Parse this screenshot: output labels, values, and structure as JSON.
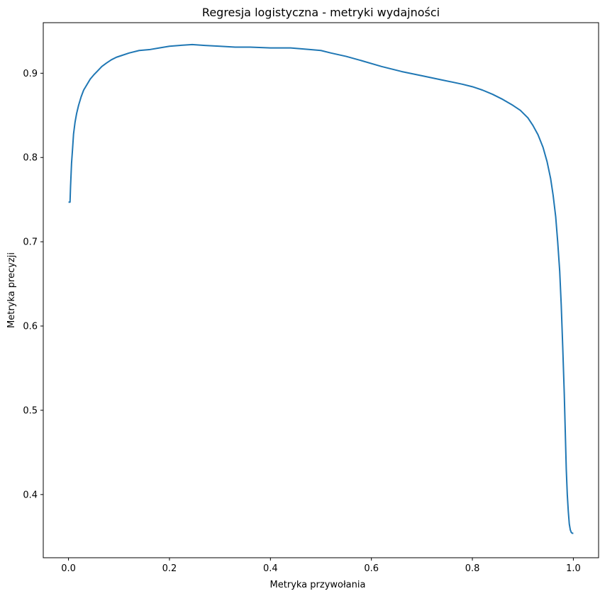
{
  "chart_data": {
    "type": "line",
    "title": "Regresja logistyczna - metryki wydajności",
    "xlabel": "Metryka przywołania",
    "ylabel": "Metryka precyzji",
    "xlim": [
      -0.05,
      1.05
    ],
    "ylim": [
      0.325,
      0.96
    ],
    "xticks": [
      {
        "value": 0.0,
        "label": "0.0"
      },
      {
        "value": 0.2,
        "label": "0.2"
      },
      {
        "value": 0.4,
        "label": "0.4"
      },
      {
        "value": 0.6,
        "label": "0.6"
      },
      {
        "value": 0.8,
        "label": "0.8"
      },
      {
        "value": 1.0,
        "label": "1.0"
      }
    ],
    "yticks": [
      {
        "value": 0.4,
        "label": "0.4"
      },
      {
        "value": 0.5,
        "label": "0.5"
      },
      {
        "value": 0.6,
        "label": "0.6"
      },
      {
        "value": 0.7,
        "label": "0.7"
      },
      {
        "value": 0.8,
        "label": "0.8"
      },
      {
        "value": 0.9,
        "label": "0.9"
      }
    ],
    "grid": false,
    "legend": "none",
    "series": [
      {
        "color": "#1f77b4",
        "x": [
          0.0,
          0.003,
          0.004,
          0.006,
          0.008,
          0.01,
          0.013,
          0.016,
          0.02,
          0.025,
          0.03,
          0.036,
          0.043,
          0.05,
          0.058,
          0.066,
          0.075,
          0.085,
          0.095,
          0.105,
          0.12,
          0.14,
          0.16,
          0.18,
          0.2,
          0.22,
          0.245,
          0.27,
          0.3,
          0.33,
          0.36,
          0.4,
          0.44,
          0.48,
          0.5,
          0.52,
          0.55,
          0.58,
          0.62,
          0.66,
          0.7,
          0.74,
          0.78,
          0.8,
          0.82,
          0.84,
          0.86,
          0.88,
          0.895,
          0.91,
          0.92,
          0.93,
          0.94,
          0.948,
          0.955,
          0.96,
          0.965,
          0.969,
          0.973,
          0.976,
          0.979,
          0.982,
          0.984,
          0.986,
          0.988,
          0.99,
          0.992,
          0.994,
          0.996,
          0.998,
          1.0
        ],
        "y": [
          0.747,
          0.747,
          0.765,
          0.793,
          0.81,
          0.828,
          0.842,
          0.852,
          0.862,
          0.872,
          0.88,
          0.886,
          0.893,
          0.898,
          0.903,
          0.908,
          0.912,
          0.916,
          0.919,
          0.921,
          0.924,
          0.927,
          0.928,
          0.93,
          0.932,
          0.933,
          0.934,
          0.933,
          0.932,
          0.931,
          0.931,
          0.93,
          0.93,
          0.928,
          0.927,
          0.924,
          0.92,
          0.915,
          0.908,
          0.902,
          0.897,
          0.892,
          0.887,
          0.884,
          0.88,
          0.875,
          0.869,
          0.862,
          0.856,
          0.847,
          0.838,
          0.827,
          0.812,
          0.795,
          0.775,
          0.755,
          0.73,
          0.7,
          0.665,
          0.625,
          0.575,
          0.52,
          0.475,
          0.43,
          0.4,
          0.38,
          0.365,
          0.358,
          0.355,
          0.354,
          0.354
        ]
      }
    ]
  }
}
